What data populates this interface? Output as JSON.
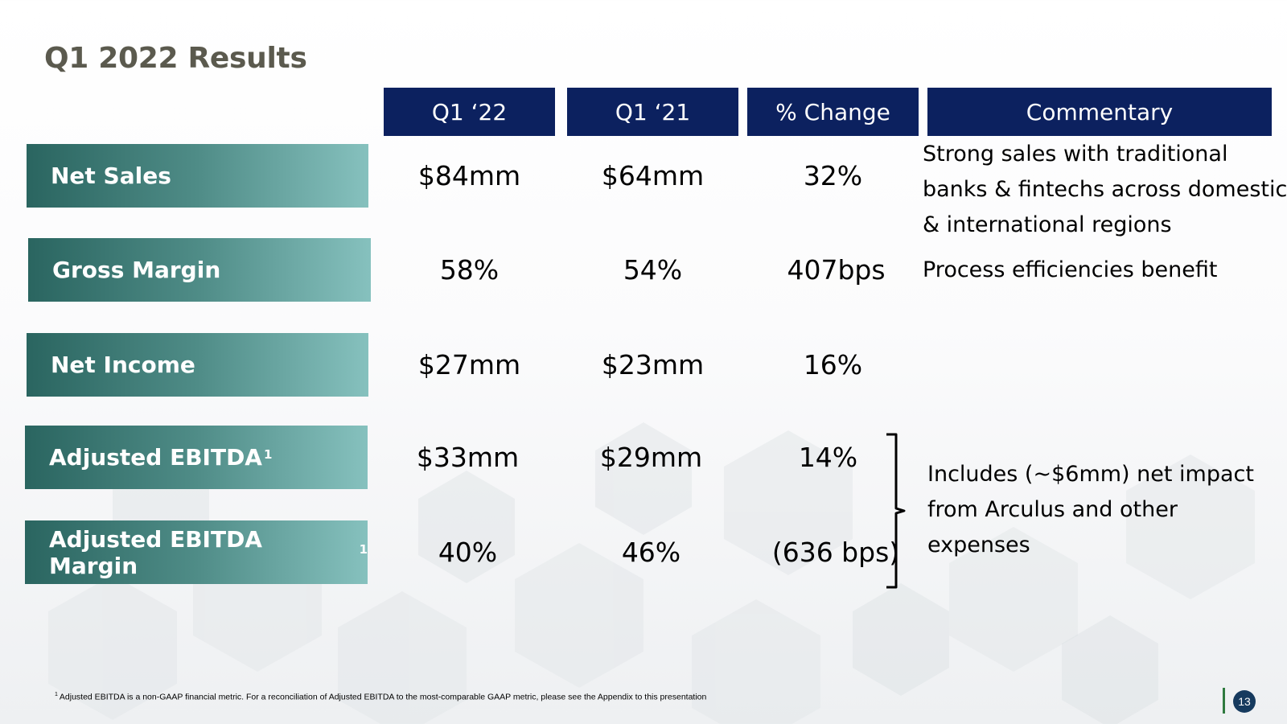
{
  "title": "Q1 2022 Results",
  "headers": [
    "Q1 ‘22",
    "Q1 ‘21",
    "% Change",
    "Commentary"
  ],
  "rows": [
    {
      "label": "Net Sales",
      "sup": "",
      "q1_22": "$84mm",
      "q1_21": "$64mm",
      "change": "32%"
    },
    {
      "label": "Gross Margin",
      "sup": "",
      "q1_22": "58%",
      "q1_21": "54%",
      "change": "407bps"
    },
    {
      "label": "Net Income",
      "sup": "",
      "q1_22": "$27mm",
      "q1_21": "$23mm",
      "change": "16%"
    },
    {
      "label": "Adjusted EBITDA",
      "sup": "1",
      "q1_22": "$33mm",
      "q1_21": "$29mm",
      "change": "14%"
    },
    {
      "label": "Adjusted EBITDA Margin",
      "sup": "1",
      "q1_22": "40%",
      "q1_21": "46%",
      "change": "(636 bps)"
    }
  ],
  "commentary": {
    "net_sales": [
      "Strong sales with traditional",
      "banks & fintechs across domestic",
      "& international regions"
    ],
    "gross_margin": [
      "Process efficiencies benefit"
    ],
    "ebitda": [
      "Includes (~$6mm) net impact",
      "from Arculus and other",
      "expenses"
    ]
  },
  "footnote": {
    "marker": "1",
    "text": "Adjusted EBITDA is a non-GAAP financial metric. For a reconciliation of Adjusted EBITDA to the most-comparable GAAP metric, please see the Appendix to this presentation"
  },
  "page_number": "13",
  "colors": {
    "header_bg": "#0c215f",
    "label_gradient_start": "#2a6560",
    "label_gradient_end": "#86c1be",
    "title": "#5b5a4e",
    "page_accent": "#2f7a3f"
  }
}
